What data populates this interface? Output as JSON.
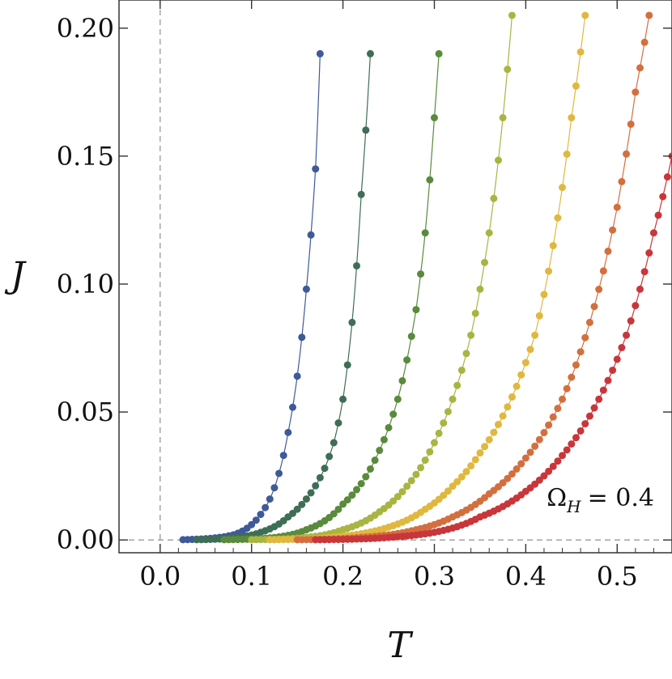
{
  "chart_data": {
    "type": "scatter",
    "xlabel": "T",
    "ylabel": "J",
    "xlim": [
      -0.045,
      0.56
    ],
    "ylim": [
      -0.005,
      0.211
    ],
    "x_ticks": [
      "0.0",
      "0.1",
      "0.2",
      "0.3",
      "0.4",
      "0.5"
    ],
    "y_ticks": [
      "0.00",
      "0.05",
      "0.10",
      "0.15",
      "0.20"
    ],
    "annotation": {
      "main": "Ω",
      "sub": "H",
      "rest": "= 0.4"
    },
    "reference_lines": {
      "x": 0,
      "y": 0,
      "style": "dashed"
    },
    "grid": false,
    "legend": "none",
    "series": [
      {
        "color": "#3f5a98",
        "points": [
          [
            0.025,
            0.0001
          ],
          [
            0.04,
            0.0003
          ],
          [
            0.06,
            0.0008
          ],
          [
            0.08,
            0.002
          ],
          [
            0.1,
            0.006
          ],
          [
            0.11,
            0.01
          ],
          [
            0.12,
            0.016
          ],
          [
            0.13,
            0.026
          ],
          [
            0.14,
            0.042
          ],
          [
            0.15,
            0.064
          ],
          [
            0.16,
            0.098
          ],
          [
            0.17,
            0.145
          ],
          [
            0.175,
            0.19
          ]
        ]
      },
      {
        "color": "#3e6e55",
        "points": [
          [
            0.04,
            0.0001
          ],
          [
            0.08,
            0.0008
          ],
          [
            0.11,
            0.003
          ],
          [
            0.14,
            0.009
          ],
          [
            0.16,
            0.016
          ],
          [
            0.18,
            0.028
          ],
          [
            0.19,
            0.038
          ],
          [
            0.2,
            0.055
          ],
          [
            0.21,
            0.085
          ],
          [
            0.22,
            0.135
          ],
          [
            0.23,
            0.19
          ]
        ]
      },
      {
        "color": "#5a8a3c",
        "points": [
          [
            0.07,
            0.0001
          ],
          [
            0.12,
            0.0008
          ],
          [
            0.16,
            0.004
          ],
          [
            0.2,
            0.014
          ],
          [
            0.22,
            0.022
          ],
          [
            0.24,
            0.035
          ],
          [
            0.26,
            0.055
          ],
          [
            0.28,
            0.09
          ],
          [
            0.29,
            0.12
          ],
          [
            0.3,
            0.165
          ],
          [
            0.305,
            0.19
          ]
        ]
      },
      {
        "color": "#a8b542",
        "points": [
          [
            0.1,
            0.0001
          ],
          [
            0.16,
            0.001
          ],
          [
            0.2,
            0.004
          ],
          [
            0.24,
            0.011
          ],
          [
            0.27,
            0.021
          ],
          [
            0.3,
            0.038
          ],
          [
            0.32,
            0.055
          ],
          [
            0.34,
            0.08
          ],
          [
            0.36,
            0.12
          ],
          [
            0.375,
            0.165
          ],
          [
            0.385,
            0.205
          ]
        ]
      },
      {
        "color": "#e0b83f",
        "points": [
          [
            0.12,
            0.0001
          ],
          [
            0.2,
            0.0015
          ],
          [
            0.25,
            0.005
          ],
          [
            0.29,
            0.012
          ],
          [
            0.32,
            0.021
          ],
          [
            0.35,
            0.034
          ],
          [
            0.38,
            0.052
          ],
          [
            0.41,
            0.08
          ],
          [
            0.43,
            0.115
          ],
          [
            0.45,
            0.165
          ],
          [
            0.465,
            0.205
          ]
        ]
      },
      {
        "color": "#d36f3f",
        "points": [
          [
            0.15,
            0.0001
          ],
          [
            0.22,
            0.001
          ],
          [
            0.28,
            0.004
          ],
          [
            0.32,
            0.009
          ],
          [
            0.36,
            0.018
          ],
          [
            0.4,
            0.032
          ],
          [
            0.44,
            0.055
          ],
          [
            0.47,
            0.085
          ],
          [
            0.5,
            0.13
          ],
          [
            0.52,
            0.175
          ],
          [
            0.535,
            0.205
          ]
        ]
      },
      {
        "color": "#c9363a",
        "points": [
          [
            0.17,
            0.0001
          ],
          [
            0.25,
            0.001
          ],
          [
            0.3,
            0.003
          ],
          [
            0.35,
            0.009
          ],
          [
            0.4,
            0.019
          ],
          [
            0.44,
            0.033
          ],
          [
            0.48,
            0.055
          ],
          [
            0.51,
            0.08
          ],
          [
            0.54,
            0.12
          ],
          [
            0.56,
            0.15
          ]
        ]
      }
    ]
  }
}
